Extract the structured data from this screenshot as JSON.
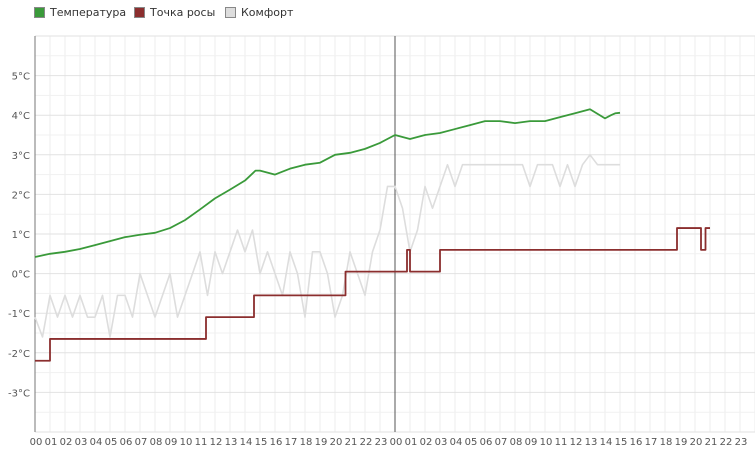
{
  "legend": {
    "items": [
      {
        "label": "Температура",
        "color": "#3a9a3a"
      },
      {
        "label": "Точка росы",
        "color": "#8b2e2e"
      },
      {
        "label": "Комфорт",
        "color": "#dddddd"
      }
    ]
  },
  "chart_data": {
    "type": "line",
    "y_unit": "°C",
    "ylim": [
      -4,
      6
    ],
    "y_ticks": [
      "5°C",
      "4°C",
      "3°C",
      "2°C",
      "1°C",
      "0°C",
      "-1°C",
      "-2°C",
      "-3°C"
    ],
    "y_tick_values": [
      5,
      4,
      3,
      2,
      1,
      0,
      -1,
      -2,
      -3
    ],
    "xlim": [
      0,
      48
    ],
    "x_tick_labels": [
      "00",
      "01",
      "02",
      "03",
      "04",
      "05",
      "06",
      "07",
      "08",
      "09",
      "10",
      "11",
      "12",
      "13",
      "14",
      "15",
      "16",
      "17",
      "18",
      "19",
      "20",
      "21",
      "22",
      "23",
      "00",
      "01",
      "02",
      "03",
      "04",
      "05",
      "06",
      "07",
      "08",
      "09",
      "10",
      "11",
      "12",
      "13",
      "14",
      "15",
      "16",
      "17",
      "18",
      "19",
      "20",
      "21",
      "22",
      "23"
    ],
    "day_separator_x": 24,
    "grid": true,
    "legend_position": "top-left",
    "series": [
      {
        "name": "Температура",
        "color": "#3a9a3a",
        "x": [
          0,
          1,
          2,
          3,
          4,
          5,
          6,
          7,
          8,
          9,
          10,
          11,
          12,
          13,
          14,
          14.7,
          15,
          16,
          17,
          18,
          19,
          20,
          21,
          22,
          23,
          24,
          25,
          26,
          27,
          28,
          29,
          30,
          31,
          32,
          33,
          34,
          35,
          36,
          37,
          38,
          38.4,
          38.7,
          39
        ],
        "y": [
          0.42,
          0.5,
          0.55,
          0.62,
          0.72,
          0.82,
          0.92,
          0.98,
          1.03,
          1.15,
          1.35,
          1.62,
          1.9,
          2.12,
          2.35,
          2.6,
          2.6,
          2.5,
          2.65,
          2.75,
          2.8,
          3.0,
          3.05,
          3.15,
          3.3,
          3.5,
          3.4,
          3.5,
          3.55,
          3.65,
          3.75,
          3.85,
          3.85,
          3.8,
          3.85,
          3.85,
          3.95,
          4.05,
          4.15,
          3.92,
          4.0,
          4.05,
          4.06
        ],
        "step": false
      },
      {
        "name": "Точка росы",
        "color": "#8b2e2e",
        "x": [
          0,
          0.8,
          1,
          11.3,
          11.4,
          14.5,
          14.6,
          20.6,
          20.7,
          24,
          24.8,
          25,
          26.8,
          27,
          42.6,
          42.8,
          44.3,
          44.4,
          44.6,
          44.7,
          45
        ],
        "y": [
          -2.2,
          -2.2,
          -1.65,
          -1.65,
          -1.1,
          -1.1,
          -0.55,
          -0.55,
          0.05,
          0.05,
          0.6,
          0.05,
          0.05,
          0.6,
          0.6,
          1.15,
          1.15,
          0.6,
          0.6,
          1.15,
          1.15
        ],
        "step": true
      },
      {
        "name": "Комфорт",
        "color": "#dddddd",
        "x": [
          0,
          0.5,
          1,
          1.5,
          2,
          2.5,
          3,
          3.5,
          4,
          4.5,
          5,
          5.5,
          6,
          6.5,
          7,
          7.5,
          8,
          8.5,
          9,
          9.5,
          10,
          10.5,
          11,
          11.5,
          12,
          12.5,
          13,
          13.5,
          14,
          14.5,
          15,
          15.5,
          16,
          16.5,
          17,
          17.5,
          18,
          18.5,
          19,
          19.5,
          20,
          20.5,
          21,
          21.5,
          22,
          22.5,
          23,
          23.5,
          24,
          24.5,
          25,
          25.5,
          26,
          26.5,
          27,
          27.5,
          28,
          28.5,
          29,
          29.5,
          30,
          30.5,
          31,
          31.5,
          32,
          32.5,
          33,
          33.5,
          34,
          34.5,
          35,
          35.5,
          36,
          36.5,
          37,
          37.5,
          38,
          38.5,
          39
        ],
        "y": [
          -1.1,
          -1.6,
          -0.55,
          -1.1,
          -0.55,
          -1.1,
          -0.55,
          -1.1,
          -1.1,
          -0.55,
          -1.6,
          -0.55,
          -0.55,
          -1.1,
          0,
          -0.55,
          -1.1,
          -0.55,
          0,
          -1.1,
          -0.55,
          0,
          0.55,
          -0.55,
          0.55,
          0,
          0.55,
          1.1,
          0.55,
          1.1,
          0,
          0.55,
          0,
          -0.55,
          0.55,
          0,
          -1.1,
          0.55,
          0.55,
          0,
          -1.1,
          -0.55,
          0.55,
          0,
          -0.55,
          0.55,
          1.1,
          2.2,
          2.2,
          1.65,
          0.55,
          1.1,
          2.2,
          1.65,
          2.2,
          2.75,
          2.2,
          2.75,
          2.75,
          2.75,
          2.75,
          2.75,
          2.75,
          2.75,
          2.75,
          2.75,
          2.2,
          2.75,
          2.75,
          2.75,
          2.2,
          2.75,
          2.2,
          2.75,
          3.0,
          2.75,
          2.75,
          2.75,
          2.75
        ],
        "step": false
      }
    ]
  }
}
